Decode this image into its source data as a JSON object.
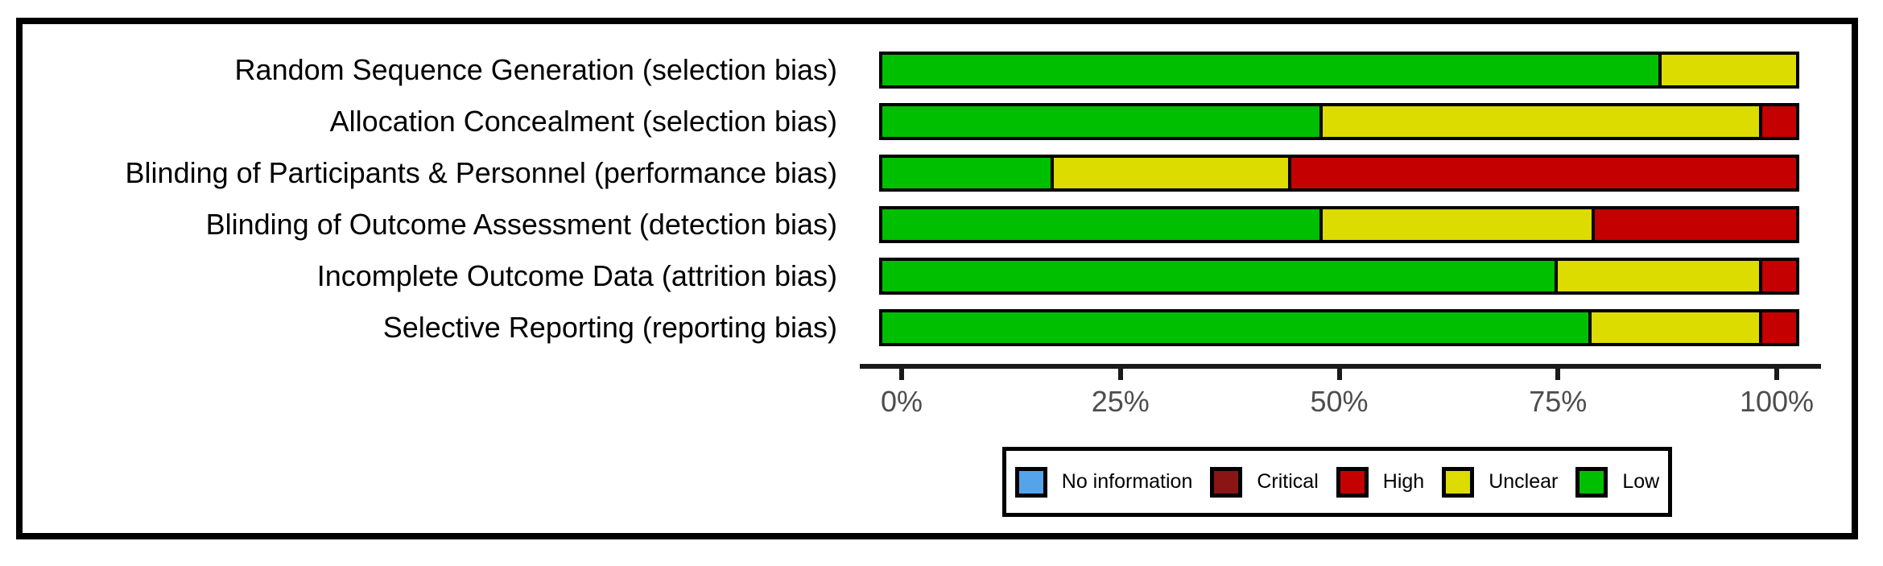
{
  "chart_data": {
    "type": "bar",
    "orientation": "horizontal",
    "stacked": true,
    "title": "",
    "xlabel": "",
    "ylabel": "",
    "xlim": [
      0,
      100
    ],
    "x_ticks": [
      "0%",
      "25%",
      "50%",
      "75%",
      "100%"
    ],
    "grid": false,
    "legend_position": "bottom",
    "categories": [
      "Random Sequence Generation (selection bias)",
      "Allocation Concealment  (selection bias)",
      "Blinding of Participants & Personnel (performance bias)",
      "Blinding of Outcome Assessment (detection bias)",
      "Incomplete Outcome Data (attrition bias)",
      "Selective Reporting (reporting bias)"
    ],
    "series": [
      {
        "name": "Low",
        "color": "#00BF00",
        "values": [
          85.2,
          48.1,
          18.5,
          48.1,
          74.1,
          77.8
        ]
      },
      {
        "name": "Unclear",
        "color": "#DCDC00",
        "values": [
          14.8,
          48.1,
          25.9,
          29.6,
          22.2,
          18.5
        ]
      },
      {
        "name": "High",
        "color": "#C40000",
        "values": [
          0,
          3.7,
          55.6,
          22.2,
          3.7,
          3.7
        ]
      },
      {
        "name": "Critical",
        "color": "#8B1414",
        "values": [
          0,
          0,
          0,
          0,
          0,
          0
        ]
      },
      {
        "name": "No information",
        "color": "#55A3EB",
        "values": [
          0,
          0,
          0,
          0,
          0,
          0
        ]
      }
    ],
    "legend": [
      {
        "label": "No information",
        "color": "#55A3EB"
      },
      {
        "label": "Critical",
        "color": "#8B1414"
      },
      {
        "label": "High",
        "color": "#C40000"
      },
      {
        "label": "Unclear",
        "color": "#DCDC00"
      },
      {
        "label": "Low",
        "color": "#00BF00"
      }
    ]
  },
  "colors": {
    "bar_border": "#000000",
    "axis_line": "#1a1a1a",
    "tick_label": "#4d4d4d",
    "frame_border": "#000000",
    "background": "#ffffff"
  }
}
